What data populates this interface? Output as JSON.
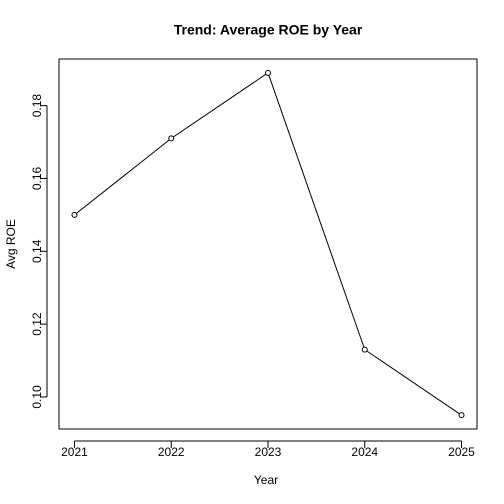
{
  "chart_data": {
    "type": "line",
    "title": "Trend: Average ROE by Year",
    "x_label": "Year",
    "y_label": "Avg ROE",
    "x": [
      2021,
      2022,
      2023,
      2024,
      2025
    ],
    "values": [
      0.15,
      0.171,
      0.189,
      0.113,
      0.095
    ],
    "color": "#000000",
    "xlim": [
      2020.84,
      2025.16
    ],
    "xticks": [
      2021,
      2022,
      2023,
      2024,
      2025
    ],
    "ylim": [
      0.0912,
      0.1928
    ],
    "yticks": [
      {
        "value": 0.1,
        "label": "0.10"
      },
      {
        "value": 0.12,
        "label": "0.12"
      },
      {
        "value": 0.14,
        "label": "0.14"
      },
      {
        "value": 0.16,
        "label": "0.16"
      },
      {
        "value": 0.18,
        "label": "0.18"
      }
    ]
  }
}
